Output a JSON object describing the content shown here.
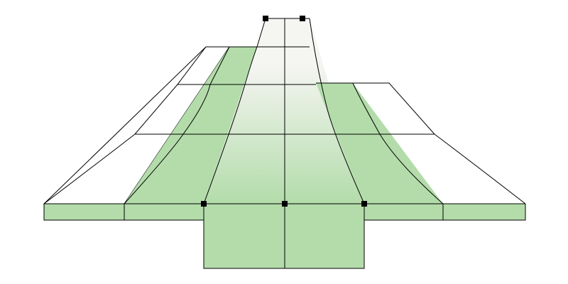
{
  "colors": {
    "background": "#ffffff",
    "green_fill": "#b3dcaa",
    "center_fill": "#f5f5f2",
    "outline": "#000000",
    "handle": "#000000"
  },
  "handles": {
    "count": 5,
    "shape": "square"
  }
}
